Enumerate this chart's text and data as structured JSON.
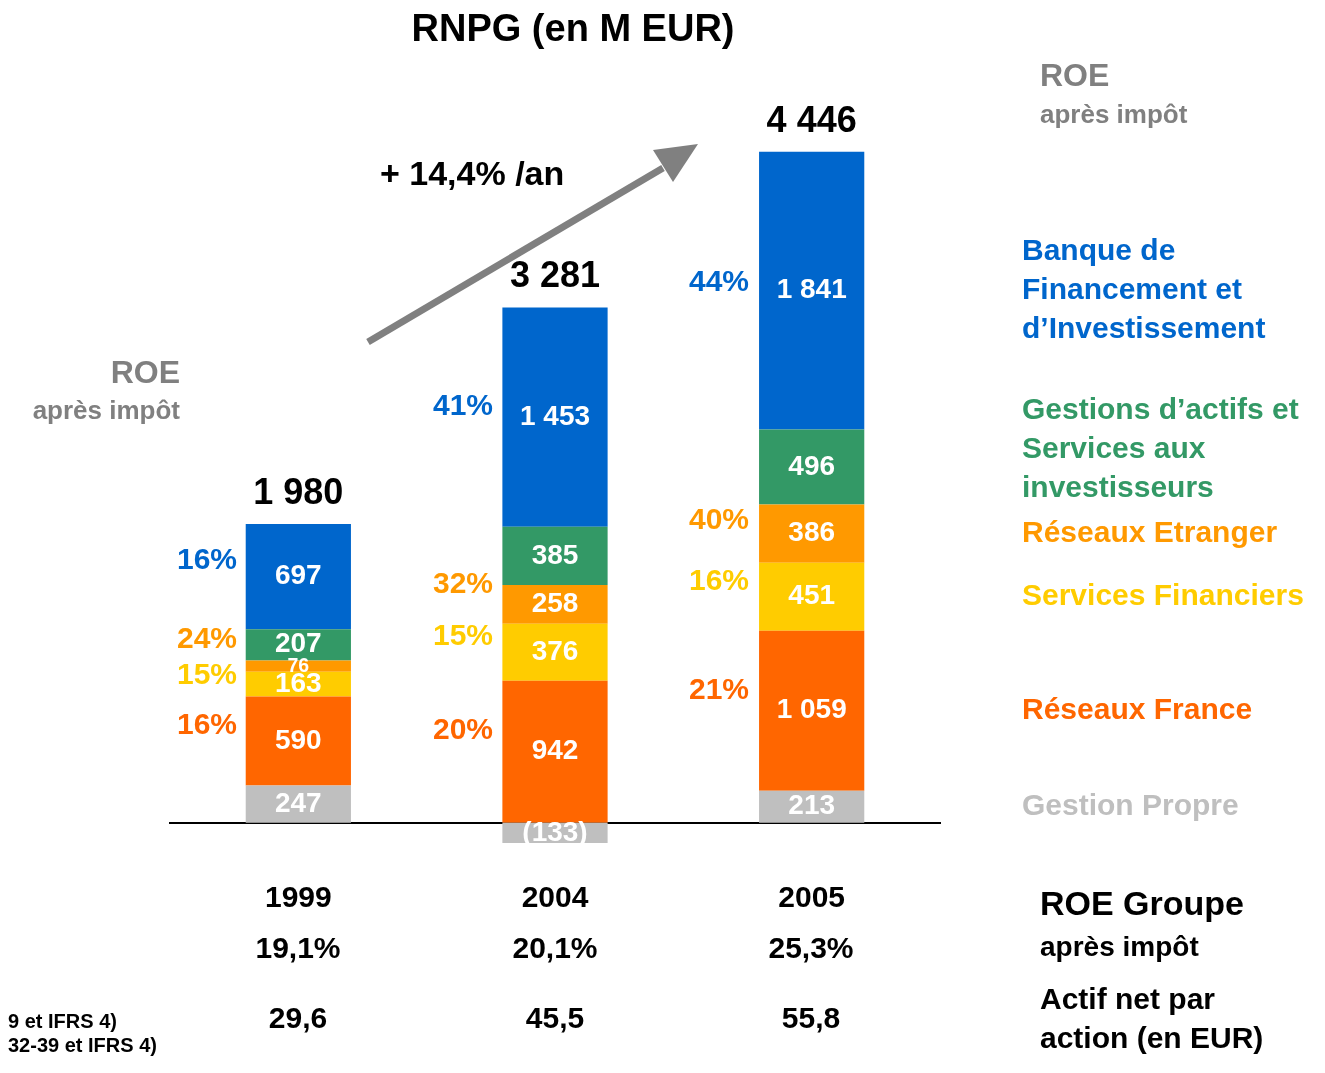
{
  "chart_data": {
    "type": "bar",
    "title": "RNPG (en M EUR)",
    "categories": [
      "1999",
      "2004",
      "2005"
    ],
    "stacked": true,
    "tick_labels": "x",
    "legend": "right",
    "series": [
      {
        "name": "Gestion Propre",
        "color": "#bfbfbf",
        "values": [
          247,
          -133,
          213
        ],
        "value_labels": [
          "247",
          "(133)",
          "213"
        ]
      },
      {
        "name": "Réseaux France",
        "color": "#ff6600",
        "values": [
          590,
          942,
          1059
        ],
        "value_labels": [
          "590",
          "942",
          "1 059"
        ]
      },
      {
        "name": "Services Financiers",
        "color": "#ffcc00",
        "values": [
          163,
          376,
          451
        ],
        "value_labels": [
          "163",
          "376",
          "451"
        ]
      },
      {
        "name": "Réseaux Etranger",
        "color": "#ff9900",
        "values": [
          76,
          258,
          386
        ],
        "value_labels": [
          "76",
          "258",
          "386"
        ]
      },
      {
        "name": "Gestions d’actifs et Services aux investisseurs",
        "color": "#339966",
        "values": [
          207,
          385,
          496
        ],
        "value_labels": [
          "207",
          "385",
          "496"
        ]
      },
      {
        "name": "Banque de Financement et d’Investissement",
        "color": "#0066cc",
        "values": [
          697,
          1453,
          1841
        ],
        "value_labels": [
          "697",
          "1 453",
          "1 841"
        ]
      }
    ],
    "totals": [
      "1 980",
      "3 281",
      "4 446"
    ],
    "annotations": [
      "+ 14,4% /an",
      "ROE",
      "après impôt",
      "ROE",
      "après impôt",
      "ROE Groupe",
      "après impôt",
      "Actif net par",
      "action (en EUR)",
      "9 et IFRS 4)",
      "32-39 et IFRS 4)",
      "16%",
      "24%",
      "15%",
      "16%",
      "41%",
      "32%",
      "15%",
      "20%",
      "44%",
      "40%",
      "16%",
      "21%",
      "19,1%",
      "20,1%",
      "25,3%",
      "29,6",
      "45,5",
      "55,8"
    ]
  }
}
